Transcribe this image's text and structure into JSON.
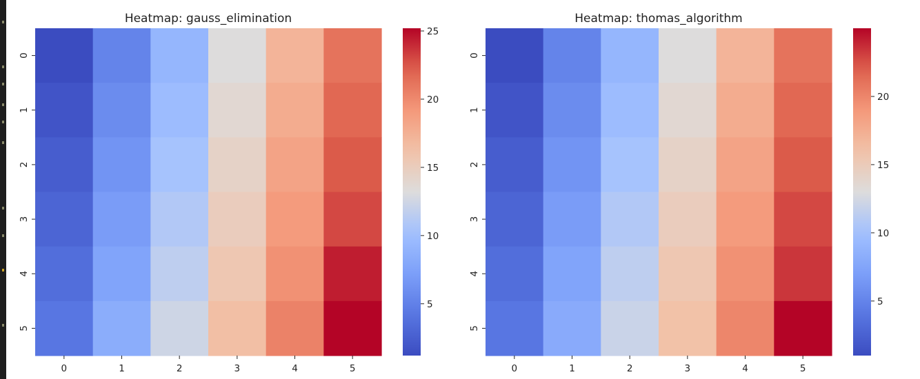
{
  "chart_data": [
    {
      "type": "heatmap",
      "title": "Heatmap: gauss_elimination",
      "xlabel": "",
      "ylabel": "",
      "x_categories": [
        "0",
        "1",
        "2",
        "3",
        "4",
        "5"
      ],
      "y_categories": [
        "0",
        "1",
        "2",
        "3",
        "4",
        "5"
      ],
      "colormap": "coolwarm",
      "vmin": 1.2,
      "vmax": 25.2,
      "colorbar_ticks": [
        5,
        10,
        15,
        20,
        25
      ],
      "values": [
        [
          1.2,
          5.2,
          9.2,
          13.2,
          17.2,
          21.2
        ],
        [
          1.8,
          5.8,
          9.8,
          13.8,
          17.8,
          21.8
        ],
        [
          2.4,
          6.4,
          10.4,
          14.4,
          18.4,
          22.4
        ],
        [
          3.0,
          7.0,
          11.0,
          15.0,
          19.0,
          23.0
        ],
        [
          3.6,
          7.6,
          11.6,
          15.6,
          19.6,
          24.4
        ],
        [
          4.2,
          8.4,
          12.4,
          16.4,
          20.4,
          25.2
        ]
      ]
    },
    {
      "type": "heatmap",
      "title": "Heatmap: thomas_algorithm",
      "xlabel": "",
      "ylabel": "",
      "x_categories": [
        "0",
        "1",
        "2",
        "3",
        "4",
        "5"
      ],
      "y_categories": [
        "0",
        "1",
        "2",
        "3",
        "4",
        "5"
      ],
      "colormap": "coolwarm",
      "vmin": 1.0,
      "vmax": 25.0,
      "colorbar_ticks": [
        5,
        10,
        15,
        20
      ],
      "values": [
        [
          1.0,
          5.0,
          9.0,
          13.0,
          17.0,
          21.0
        ],
        [
          1.6,
          5.6,
          9.6,
          13.6,
          17.6,
          21.6
        ],
        [
          2.2,
          6.2,
          10.2,
          14.2,
          18.2,
          22.2
        ],
        [
          2.8,
          6.8,
          10.8,
          14.8,
          18.8,
          22.8
        ],
        [
          3.4,
          7.4,
          11.4,
          15.4,
          19.4,
          23.4
        ],
        [
          4.0,
          8.0,
          12.0,
          16.0,
          20.0,
          25.0
        ]
      ]
    }
  ]
}
